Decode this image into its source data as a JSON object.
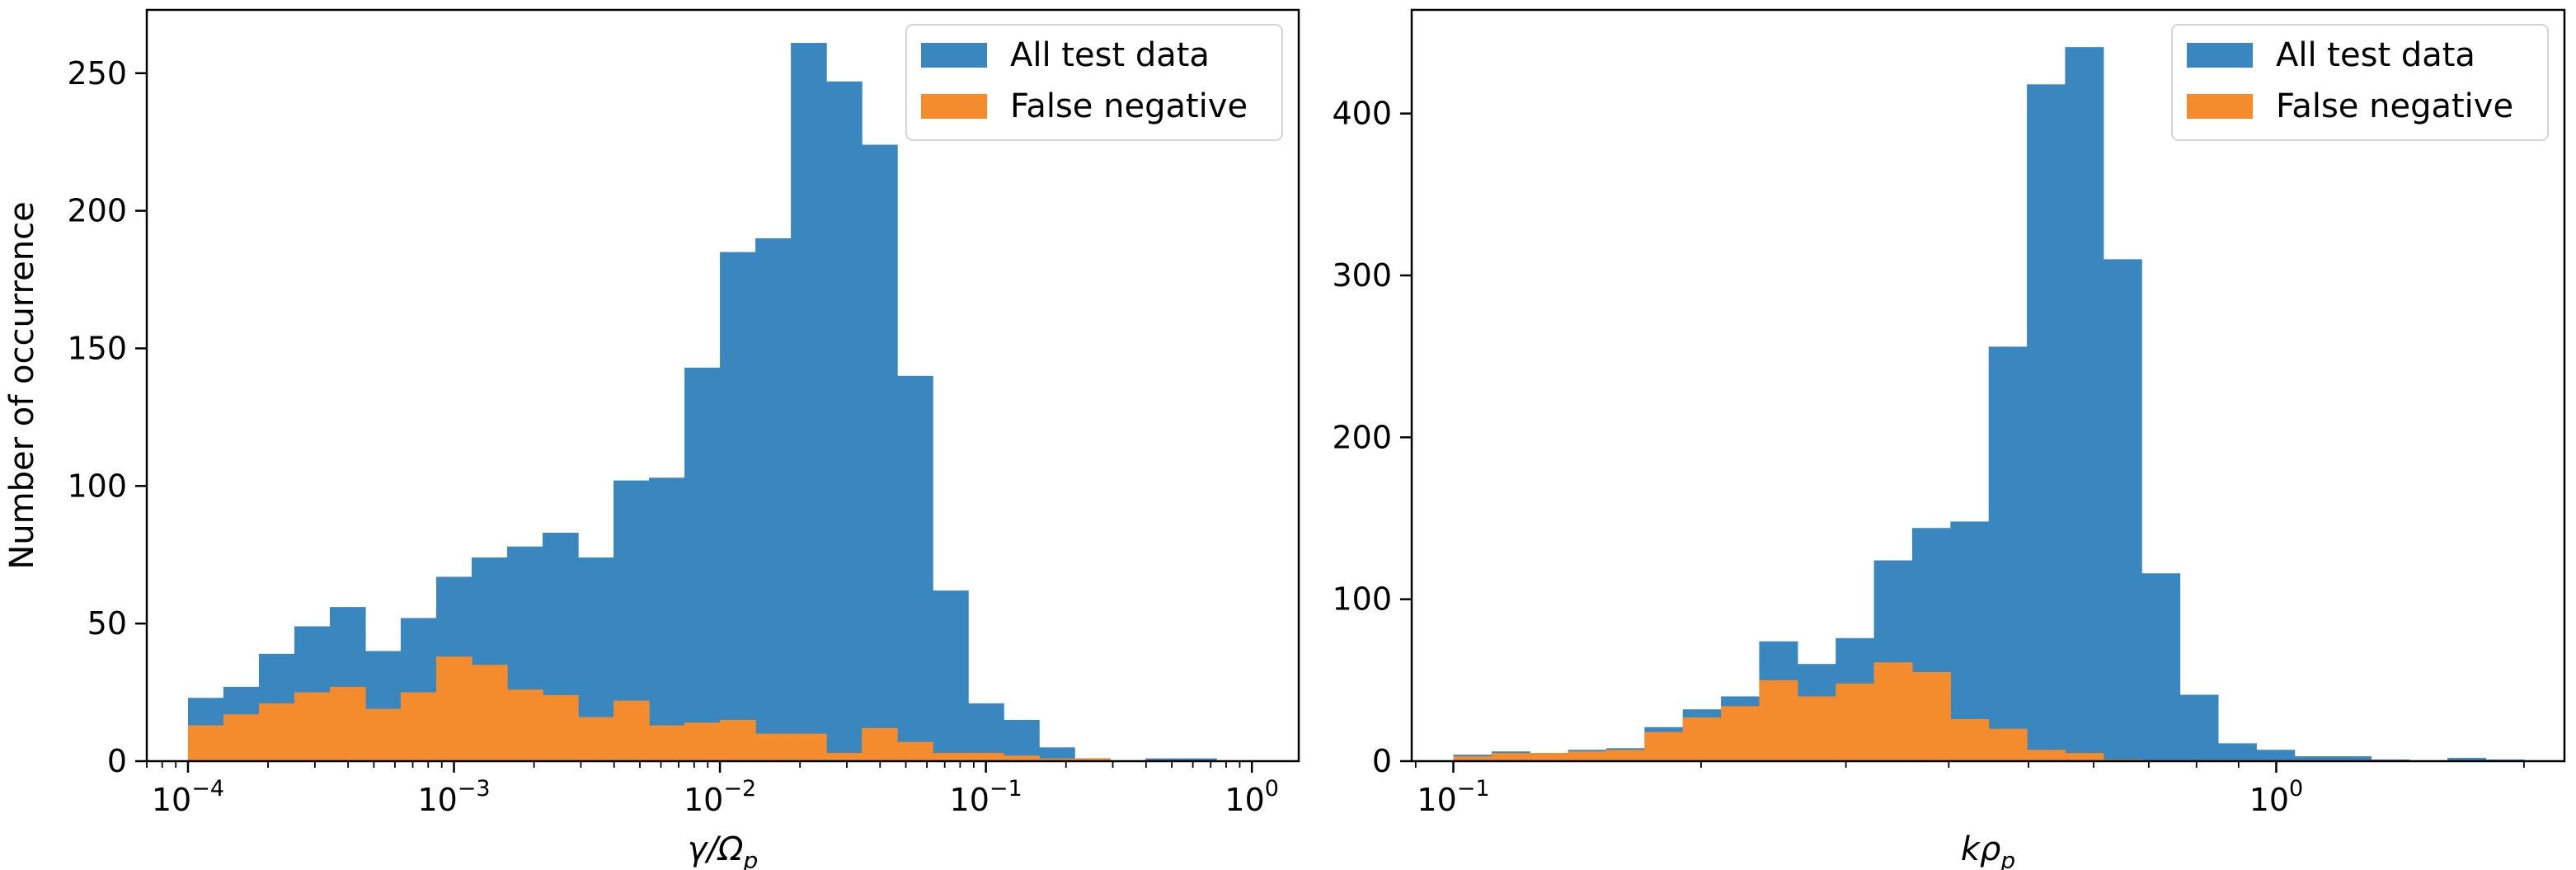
{
  "chart_data": [
    {
      "type": "histogram",
      "xscale": "log",
      "xlabel_base": "γ/Ω",
      "xlabel_sub": "p",
      "ylabel": "Number of occurrence",
      "xlim": [
        7e-05,
        1.5
      ],
      "ylim": [
        0,
        273
      ],
      "xticks": [
        {
          "value": 0.0001,
          "base": "10",
          "exp": "−4"
        },
        {
          "value": 0.001,
          "base": "10",
          "exp": "−3"
        },
        {
          "value": 0.01,
          "base": "10",
          "exp": "−2"
        },
        {
          "value": 0.1,
          "base": "10",
          "exp": "−1"
        },
        {
          "value": 1,
          "base": "10",
          "exp": "0"
        }
      ],
      "yticks": [
        0,
        50,
        100,
        150,
        200,
        250
      ],
      "bin_range": [
        0.0001,
        1
      ],
      "legend_position": "upper right",
      "series": [
        {
          "name": "All test data",
          "color": "#3a86bf",
          "values": [
            23,
            27,
            39,
            49,
            56,
            40,
            52,
            67,
            74,
            78,
            83,
            74,
            102,
            103,
            143,
            185,
            190,
            261,
            247,
            224,
            140,
            62,
            21,
            15,
            5,
            1,
            0,
            1,
            1,
            0
          ]
        },
        {
          "name": "False negative",
          "color": "#f48c2e",
          "values": [
            13,
            17,
            21,
            25,
            27,
            19,
            25,
            38,
            35,
            26,
            24,
            16,
            22,
            13,
            14,
            15,
            10,
            10,
            3,
            12,
            7,
            3,
            3,
            2,
            1,
            1,
            0,
            0,
            0,
            0
          ]
        }
      ]
    },
    {
      "type": "histogram",
      "xscale": "log",
      "xlabel_base": "kρ",
      "xlabel_sub": "p",
      "ylabel": "",
      "xlim": [
        0.089,
        2.24
      ],
      "ylim": [
        0,
        464
      ],
      "xticks": [
        {
          "value": 0.1,
          "base": "10",
          "exp": "−1"
        },
        {
          "value": 1,
          "base": "10",
          "exp": "0"
        }
      ],
      "yticks": [
        0,
        100,
        200,
        300,
        400
      ],
      "bin_range": [
        0.1,
        2
      ],
      "legend_position": "upper right",
      "series": [
        {
          "name": "All test data",
          "color": "#3a86bf",
          "values": [
            4,
            6,
            5,
            7,
            8,
            21,
            32,
            40,
            74,
            60,
            76,
            124,
            144,
            148,
            256,
            418,
            441,
            310,
            116,
            41,
            11,
            7,
            3,
            3,
            1,
            0,
            2,
            1
          ]
        },
        {
          "name": "False negative",
          "color": "#f48c2e",
          "values": [
            3,
            5,
            5,
            6,
            7,
            18,
            27,
            34,
            50,
            40,
            48,
            61,
            55,
            26,
            20,
            7,
            5,
            1,
            0,
            0,
            0,
            0,
            0,
            0,
            0,
            0,
            0,
            0
          ]
        }
      ]
    }
  ]
}
